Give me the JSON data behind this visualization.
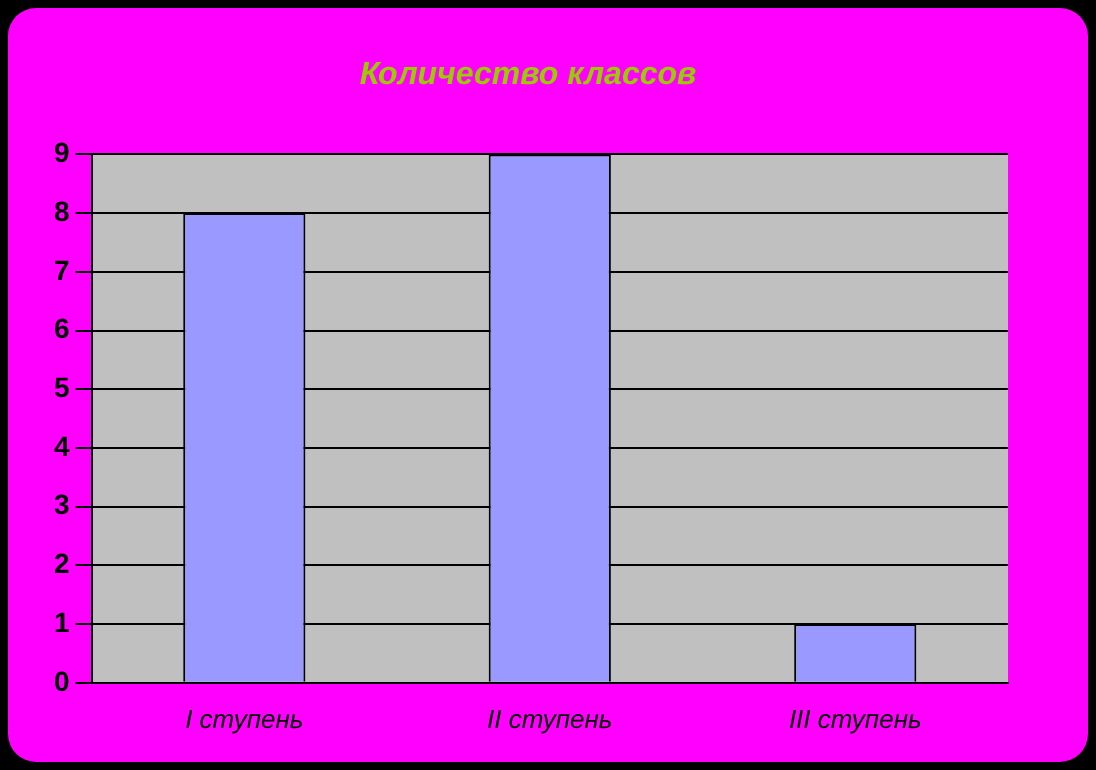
{
  "chart_data": {
    "type": "bar",
    "title": "Количество классов",
    "categories": [
      "I ступень",
      "II ступень",
      "III ступень"
    ],
    "values": [
      8,
      9,
      1
    ],
    "color": "#9999ff",
    "ylim": [
      0,
      9
    ],
    "yticks": [
      0,
      1,
      2,
      3,
      4,
      5,
      6,
      7,
      8,
      9
    ],
    "grid": "y",
    "legend": false
  }
}
